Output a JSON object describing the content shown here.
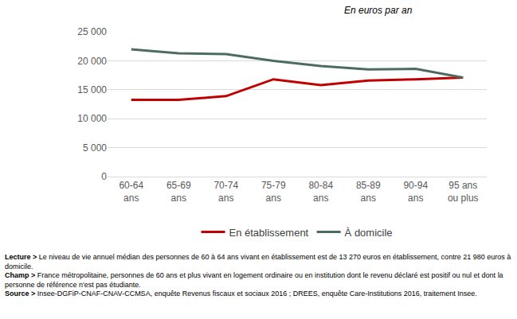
{
  "chart_data": {
    "type": "line",
    "subtitle": "En euros par an",
    "categories": [
      "60-64 ans",
      "65-69 ans",
      "70-74 ans",
      "75-79 ans",
      "80-84 ans",
      "85-89 ans",
      "90-94 ans",
      "95 ans ou plus"
    ],
    "series": [
      {
        "name": "En établissement",
        "color": "#c00000",
        "values": [
          13270,
          13250,
          13900,
          16800,
          15800,
          16600,
          16800,
          17100
        ]
      },
      {
        "name": "À domicile",
        "color": "#4d6b63",
        "values": [
          21980,
          21300,
          21150,
          20000,
          19100,
          18500,
          18600,
          17100
        ]
      }
    ],
    "ylim": [
      0,
      25000
    ],
    "yticks": [
      0,
      {
        "value": 5000,
        "label": "5 000"
      },
      {
        "value": 10000,
        "label": "10 000"
      },
      {
        "value": 15000,
        "label": "15 000"
      },
      {
        "value": 20000,
        "label": "20 000"
      },
      {
        "value": 25000,
        "label": "25 000"
      }
    ],
    "grid": true,
    "legend": "bottom"
  },
  "notes": [
    {
      "label": "Lecture >",
      "text": "Le niveau de vie annuel médian des personnes de 60 à 64 ans vivant en établissement est de 13 270 euros en établissement, contre 21 980 euros à domicile."
    },
    {
      "label": "Champ >",
      "text": "France métropolitaine, personnes de 60 ans et plus vivant en logement ordinaire ou en institution dont le revenu déclaré est positif ou nul et dont la personne de référence n'est pas étudiante."
    },
    {
      "label": "Source >",
      "text": "Insee-DGFiP-CNAF-CNAV-CCMSA, enquête Revenus fiscaux et sociaux 2016 ; DREES, enquête Care-Institutions 2016, traitement Insee."
    }
  ]
}
